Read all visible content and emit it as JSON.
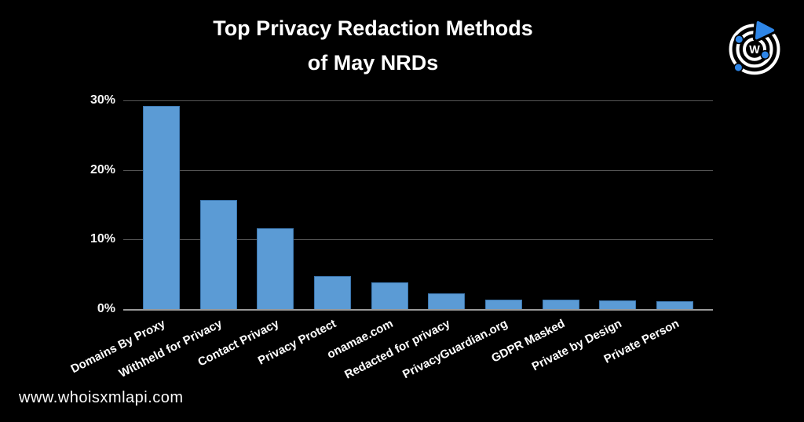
{
  "page": {
    "background": "#000000"
  },
  "title": {
    "line1": "Top Privacy Redaction Methods",
    "line2": "of May NRDs"
  },
  "watermark": "www.whoisxmlapi.com",
  "logo": {
    "letter": "W",
    "accent_color": "#2e86e8",
    "ring_color": "#ffffff"
  },
  "chart_data": {
    "type": "bar",
    "title": "Top Privacy Redaction Methods of May NRDs",
    "categories": [
      "Domains By Proxy",
      "Withheld for Privacy",
      "Contact Privacy",
      "Privacy Protect",
      "onamae.com",
      "Redacted for privacy",
      "PrivacyGuardian.org",
      "GDPR Masked",
      "Private by Design",
      "Private Person"
    ],
    "values": [
      29.2,
      15.7,
      11.6,
      4.7,
      3.8,
      2.3,
      1.4,
      1.3,
      1.2,
      1.1
    ],
    "xlabel": "",
    "ylabel": "",
    "ylim": [
      0,
      30
    ],
    "yticks": [
      "0%",
      "10%",
      "20%",
      "30%"
    ],
    "ytick_values": [
      0,
      10,
      20,
      30
    ],
    "grid": true,
    "legend": "none",
    "bar_color": "#5b9bd5",
    "bar_border_color": "#3c76ae",
    "grid_color": "#565656",
    "axis_color": "#999999",
    "label_rotation_deg": -27
  }
}
